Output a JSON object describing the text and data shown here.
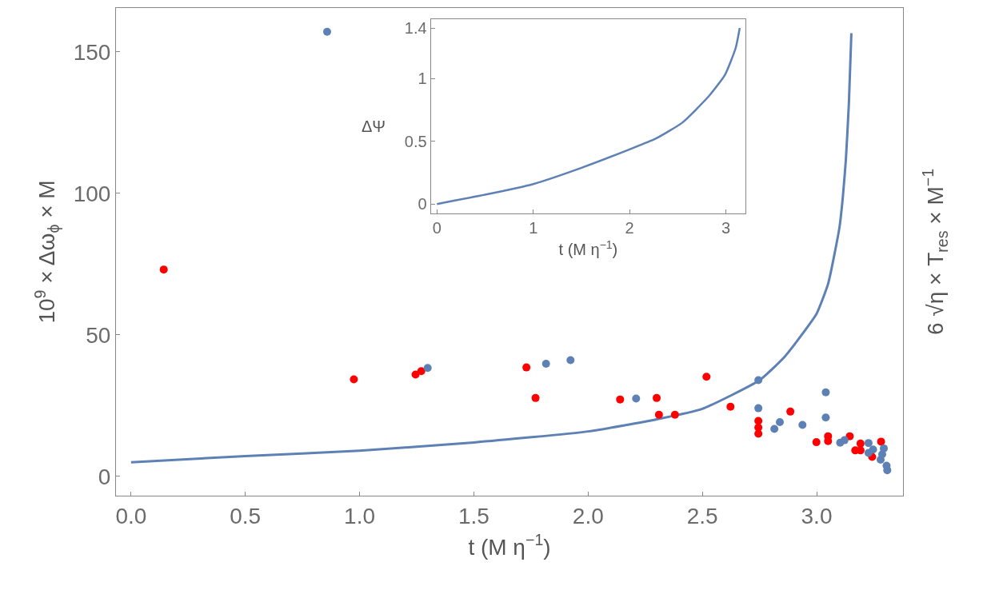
{
  "chart_data": [
    {
      "type": "scatter",
      "xlabel": "t (M η$^{−1}$)",
      "ylabel": "10$^{9}$ × Δω$_{ϕ}$ × M",
      "y2label": "6 √η × T$_{res}$ × M$^{−1}$",
      "xlim": [
        -0.066,
        3.378
      ],
      "ylim": [
        -6.8,
        165.5
      ],
      "xticks": [
        {
          "value": 0,
          "label": "0.0"
        },
        {
          "value": 0.5,
          "label": "0.5"
        },
        {
          "value": 1,
          "label": "1.0"
        },
        {
          "value": 1.5,
          "label": "1.5"
        },
        {
          "value": 2,
          "label": "2.0"
        },
        {
          "value": 2.5,
          "label": "2.5"
        },
        {
          "value": 3,
          "label": "3.0"
        }
      ],
      "yticks": [
        0,
        50,
        100,
        150
      ],
      "marker": "circle",
      "series": [
        {
          "type": "line",
          "color": "#5e81b5",
          "marker": "none",
          "x": [
            0,
            0.5,
            1.0,
            1.5,
            2.0,
            2.3,
            2.5,
            2.75,
            2.86,
            2.95,
            3.0,
            3.05,
            3.1,
            3.115,
            3.128,
            3.141,
            3.152
          ],
          "values": [
            5.0,
            7.2,
            9.1,
            12.0,
            15.9,
            20.2,
            23.9,
            34.0,
            42.3,
            51.7,
            57.5,
            68,
            88,
            99,
            112,
            131.6,
            156.6
          ]
        },
        {
          "type": "scatter",
          "color": "#ff0000",
          "x": [
            0.143,
            0.975,
            1.245,
            1.27,
            1.73,
            1.77,
            2.14,
            2.3,
            2.31,
            2.38,
            2.518,
            2.623,
            2.745,
            2.745,
            2.745,
            2.885,
            2.999,
            3.05,
            3.05,
            3.145,
            3.169,
            3.192,
            3.192,
            3.282,
            3.243
          ],
          "values": [
            73.1,
            34.3,
            36.0,
            37.2,
            38.5,
            27.7,
            27.2,
            27.7,
            21.8,
            21.8,
            35.2,
            24.6,
            19.6,
            17.3,
            15.1,
            22.9,
            12.1,
            14.2,
            12.5,
            14.2,
            9.2,
            11.6,
            9.2,
            12.3,
            6.9
          ]
        },
        {
          "type": "scatter",
          "color": "#5e81b5",
          "x": [
            0.858,
            1.298,
            1.816,
            1.923,
            2.21,
            2.745,
            2.745,
            2.815,
            2.839,
            2.938,
            3.04,
            3.04,
            3.103,
            3.122,
            3.227,
            3.227,
            3.247,
            3.294,
            3.287,
            3.28,
            3.306,
            3.309
          ],
          "values": [
            157.1,
            38.3,
            39.8,
            41.1,
            27.5,
            34.0,
            24.1,
            16.8,
            19.2,
            18.2,
            29.7,
            20.8,
            11.9,
            12.8,
            11.8,
            8.3,
            9.5,
            9.9,
            7.8,
            5.9,
            3.8,
            2.2
          ]
        }
      ]
    },
    {
      "type": "line",
      "xlabel": "t (M η$^{−1}$)",
      "ylabel": "ΔΨ",
      "xlim": [
        -0.064,
        3.205
      ],
      "ylim": [
        -0.074,
        1.471
      ],
      "xticks": [
        0,
        1,
        2,
        3
      ],
      "yticks": [
        0,
        0.5,
        1,
        1.4
      ],
      "series": [
        {
          "color": "#5e81b5",
          "x": [
            0,
            0.499,
            1,
            1.496,
            2,
            2.271,
            2.548,
            2.825,
            2.992,
            3.102,
            3.144
          ],
          "values": [
            0,
            0.074,
            0.159,
            0.287,
            0.435,
            0.52,
            0.648,
            0.86,
            1.03,
            1.242,
            1.401
          ]
        }
      ]
    }
  ]
}
